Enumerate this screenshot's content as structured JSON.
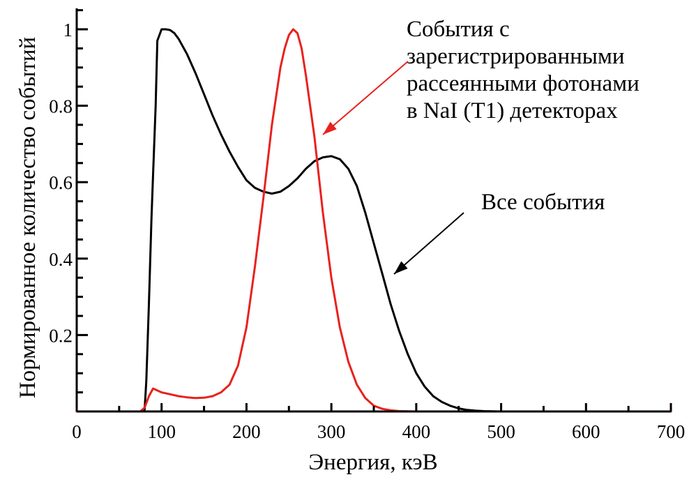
{
  "chart_data": {
    "type": "line",
    "title": "",
    "xlabel": "Энергия, кэВ",
    "ylabel": "Нормированное количество событий",
    "xlim": [
      0,
      700
    ],
    "ylim": [
      0,
      1.0
    ],
    "x_ticks": [
      0,
      100,
      200,
      300,
      400,
      500,
      600,
      700
    ],
    "x_tick_labels": [
      "0",
      "100",
      "200",
      "300",
      "400",
      "500",
      "600",
      "700"
    ],
    "y_ticks": [
      0.2,
      0.4,
      0.6,
      0.8,
      1.0
    ],
    "y_tick_labels": [
      "0.2",
      "0.4",
      "0.6",
      "0.8",
      "1"
    ],
    "grid": false,
    "series": [
      {
        "color": "#000000",
        "x": [
          0,
          75,
          80,
          82,
          85,
          88,
          90,
          93,
          95,
          100,
          105,
          110,
          115,
          120,
          130,
          140,
          150,
          160,
          170,
          180,
          190,
          200,
          210,
          220,
          230,
          240,
          250,
          260,
          270,
          280,
          290,
          300,
          310,
          320,
          330,
          340,
          350,
          360,
          370,
          380,
          390,
          400,
          410,
          420,
          430,
          440,
          450,
          460,
          470,
          480,
          500,
          700
        ],
        "y": [
          0,
          0,
          0.005,
          0.08,
          0.28,
          0.5,
          0.62,
          0.8,
          0.97,
          1.0,
          1.0,
          0.998,
          0.99,
          0.975,
          0.935,
          0.885,
          0.83,
          0.775,
          0.725,
          0.68,
          0.64,
          0.605,
          0.585,
          0.575,
          0.57,
          0.575,
          0.59,
          0.61,
          0.635,
          0.655,
          0.665,
          0.668,
          0.66,
          0.635,
          0.59,
          0.52,
          0.44,
          0.36,
          0.28,
          0.21,
          0.15,
          0.1,
          0.065,
          0.04,
          0.025,
          0.015,
          0.008,
          0.004,
          0.002,
          0.001,
          0,
          0
        ]
      },
      {
        "color": "#e8221e",
        "x": [
          0,
          75,
          80,
          85,
          90,
          95,
          100,
          110,
          120,
          130,
          140,
          150,
          160,
          170,
          180,
          190,
          200,
          210,
          220,
          230,
          240,
          245,
          250,
          255,
          260,
          265,
          270,
          280,
          290,
          300,
          310,
          320,
          330,
          340,
          350,
          360,
          370,
          380,
          400,
          700
        ],
        "y": [
          0,
          0,
          0.01,
          0.04,
          0.06,
          0.055,
          0.05,
          0.045,
          0.04,
          0.037,
          0.035,
          0.036,
          0.04,
          0.05,
          0.07,
          0.12,
          0.22,
          0.38,
          0.56,
          0.75,
          0.9,
          0.95,
          0.985,
          1.0,
          0.99,
          0.95,
          0.88,
          0.72,
          0.52,
          0.35,
          0.22,
          0.13,
          0.07,
          0.035,
          0.015,
          0.007,
          0.003,
          0.001,
          0,
          0
        ]
      }
    ],
    "annotations": [
      {
        "lines": [
          "События с",
          "зарегистрированными",
          "рассеянными фотонами",
          "в NaI (Т1) детекторах"
        ],
        "color": "#e8221e"
      },
      {
        "lines": [
          "Все события"
        ],
        "color": "#000000"
      }
    ]
  }
}
